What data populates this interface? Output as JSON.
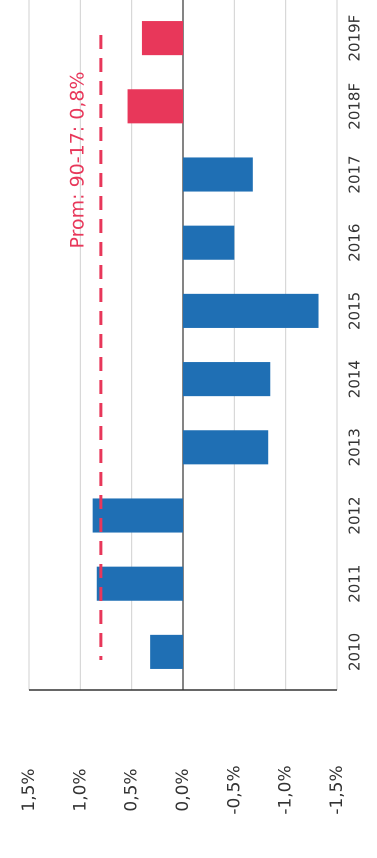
{
  "chart_data": {
    "type": "bar",
    "orientation": "rotated",
    "categories": [
      "2010",
      "2011",
      "2012",
      "2013",
      "2014",
      "2015",
      "2016",
      "2017",
      "2018F",
      "2019F"
    ],
    "values": [
      0.32,
      0.84,
      0.88,
      -0.83,
      -0.85,
      -1.32,
      -0.5,
      -0.68,
      0.54,
      0.4
    ],
    "colors": [
      "#1f6fb4",
      "#1f6fb4",
      "#1f6fb4",
      "#1f6fb4",
      "#1f6fb4",
      "#1f6fb4",
      "#1f6fb4",
      "#1f6fb4",
      "#e8375a",
      "#e8375a"
    ],
    "ylim": [
      -1.5,
      1.5
    ],
    "yticks": [
      {
        "value": 1.5,
        "label": "1,5%"
      },
      {
        "value": 1.0,
        "label": "1,0%"
      },
      {
        "value": 0.5,
        "label": "0,5%"
      },
      {
        "value": 0.0,
        "label": "0,0%"
      },
      {
        "value": -0.5,
        "label": "-0,5%"
      },
      {
        "value": -1.0,
        "label": "-1,0%"
      },
      {
        "value": -1.5,
        "label": "-1,5%"
      }
    ],
    "grid": true,
    "reference_line": {
      "value": 0.8,
      "label": "Prom: 90-17: 0,8%",
      "color": "#e8375a"
    }
  }
}
